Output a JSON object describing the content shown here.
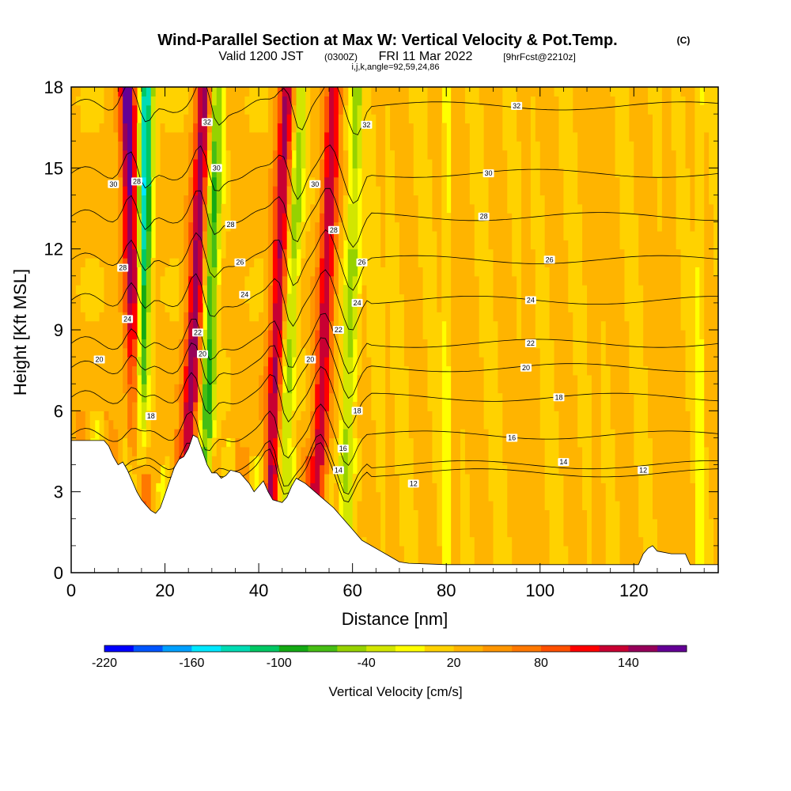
{
  "title": {
    "main": "Wind-Parallel Section at Max W: Vertical Velocity & Pot.Temp.",
    "copyright": "(C)",
    "valid_prefix": "Valid 1200 JST",
    "valid_utc": "(0300Z)",
    "valid_date": "FRI 11 Mar 2022",
    "forecast": "[9hrFcst@2210z]",
    "params": "i,j,k,angle=92,59,24,86"
  },
  "chart_data": {
    "type": "heatmap",
    "xlabel": "Distance [nm]",
    "ylabel": "Height [Kft MSL]",
    "xlim": [
      0,
      138
    ],
    "ylim": [
      0,
      18
    ],
    "x_ticks": [
      0,
      20,
      40,
      60,
      80,
      100,
      120
    ],
    "y_ticks": [
      0,
      3,
      6,
      9,
      12,
      15,
      18
    ],
    "x_tick_labels": [
      "0",
      "20",
      "40",
      "60",
      "80",
      "100",
      "120"
    ],
    "y_tick_labels": [
      "0",
      "3",
      "6",
      "9",
      "12",
      "15",
      "18"
    ],
    "grid": false,
    "colorbar": {
      "title": "Vertical Velocity [cm/s]",
      "min": -220,
      "max": 180,
      "step": 20,
      "tick_labels": [
        "-220",
        "-160",
        "-100",
        "-40",
        "20",
        "80",
        "140"
      ],
      "tick_values": [
        -220,
        -160,
        -100,
        -40,
        20,
        80,
        140
      ],
      "colors": [
        "#0000ff",
        "#0055ff",
        "#00a0ff",
        "#00e8ff",
        "#00dcb4",
        "#00c864",
        "#14aa14",
        "#46be14",
        "#96d200",
        "#d2e600",
        "#ffff00",
        "#ffd200",
        "#ffb400",
        "#ff9600",
        "#ff7800",
        "#ff5000",
        "#ff0000",
        "#c80032",
        "#96005a",
        "#640096"
      ]
    },
    "terrain": [
      [
        0,
        4.9
      ],
      [
        7,
        4.9
      ],
      [
        8,
        4.7
      ],
      [
        9,
        4.3
      ],
      [
        10,
        4.0
      ],
      [
        11,
        4.1
      ],
      [
        12,
        3.8
      ],
      [
        13,
        3.4
      ],
      [
        14,
        3.0
      ],
      [
        15,
        2.7
      ],
      [
        16,
        2.5
      ],
      [
        17,
        2.3
      ],
      [
        18,
        2.2
      ],
      [
        19,
        2.4
      ],
      [
        20,
        2.9
      ],
      [
        21,
        3.4
      ],
      [
        22,
        3.9
      ],
      [
        23,
        4.2
      ],
      [
        24,
        4.3
      ],
      [
        25,
        4.6
      ],
      [
        26,
        5.1
      ],
      [
        27,
        5.0
      ],
      [
        28,
        4.5
      ],
      [
        29,
        4.0
      ],
      [
        30,
        3.7
      ],
      [
        31,
        3.7
      ],
      [
        32,
        3.5
      ],
      [
        33,
        3.6
      ],
      [
        34,
        3.8
      ],
      [
        36,
        3.7
      ],
      [
        37,
        3.5
      ],
      [
        38,
        3.3
      ],
      [
        39,
        3.0
      ],
      [
        40,
        3.2
      ],
      [
        41,
        3.4
      ],
      [
        42,
        3.0
      ],
      [
        43,
        2.7
      ],
      [
        45,
        2.6
      ],
      [
        46,
        2.8
      ],
      [
        47,
        3.2
      ],
      [
        48,
        3.5
      ],
      [
        50,
        3.3
      ],
      [
        52,
        3.0
      ],
      [
        54,
        2.7
      ],
      [
        56,
        2.4
      ],
      [
        58,
        2.0
      ],
      [
        60,
        1.6
      ],
      [
        62,
        1.2
      ],
      [
        64,
        1.0
      ],
      [
        66,
        0.8
      ],
      [
        68,
        0.6
      ],
      [
        70,
        0.4
      ],
      [
        72,
        0.35
      ],
      [
        80,
        0.3
      ],
      [
        90,
        0.3
      ],
      [
        100,
        0.3
      ],
      [
        110,
        0.3
      ],
      [
        121,
        0.3
      ],
      [
        122,
        0.7
      ],
      [
        123,
        0.9
      ],
      [
        124,
        1.0
      ],
      [
        125,
        0.8
      ],
      [
        128,
        0.7
      ],
      [
        131,
        0.7
      ],
      [
        132,
        0.3
      ],
      [
        137,
        0.3
      ]
    ],
    "updraft_bands": [
      {
        "x_top": 12,
        "x_bottom": 15,
        "peak": 150
      },
      {
        "x_top": 28.5,
        "x_bottom": 24,
        "peak": 130
      },
      {
        "x_top": 46,
        "x_bottom": 42,
        "peak": 120
      },
      {
        "x_top": 56,
        "x_bottom": 52,
        "peak": 110
      }
    ],
    "downdraft_bands": [
      {
        "x_top": 16,
        "x_bottom": 14,
        "peak": -170
      },
      {
        "x_top": 31,
        "x_bottom": 28,
        "peak": -110
      },
      {
        "x_top": 49,
        "x_bottom": 44,
        "peak": -80
      },
      {
        "x_top": 61,
        "x_bottom": 58,
        "peak": -70
      }
    ],
    "contour_levels": [
      {
        "label": "12",
        "height": 3.7
      },
      {
        "label": "14",
        "height": 4.0
      },
      {
        "label": "16",
        "height": 5.1
      },
      {
        "label": "18",
        "height": 6.5
      },
      {
        "label": "20",
        "height": 7.6
      },
      {
        "label": "22",
        "height": 8.5
      },
      {
        "label": "24",
        "height": 10.1
      },
      {
        "label": "26",
        "height": 11.6
      },
      {
        "label": "28",
        "height": 13.2
      },
      {
        "label": "30",
        "height": 14.8
      },
      {
        "label": "32",
        "height": 17.3
      }
    ],
    "contour_labels": [
      {
        "text": "32",
        "x": 95,
        "y": 17.3
      },
      {
        "text": "32",
        "x": 63,
        "y": 16.6
      },
      {
        "text": "32",
        "x": 29,
        "y": 16.7
      },
      {
        "text": "30",
        "x": 89,
        "y": 14.8
      },
      {
        "text": "30",
        "x": 31,
        "y": 15.0
      },
      {
        "text": "30",
        "x": 52,
        "y": 14.4
      },
      {
        "text": "30",
        "x": 9,
        "y": 14.4
      },
      {
        "text": "28",
        "x": 88,
        "y": 13.2
      },
      {
        "text": "28",
        "x": 14,
        "y": 14.5
      },
      {
        "text": "28",
        "x": 34,
        "y": 12.9
      },
      {
        "text": "28",
        "x": 56,
        "y": 12.7
      },
      {
        "text": "28",
        "x": 11,
        "y": 11.3
      },
      {
        "text": "26",
        "x": 102,
        "y": 11.6
      },
      {
        "text": "26",
        "x": 36,
        "y": 11.5
      },
      {
        "text": "26",
        "x": 62,
        "y": 11.5
      },
      {
        "text": "24",
        "x": 98,
        "y": 10.1
      },
      {
        "text": "24",
        "x": 37,
        "y": 10.3
      },
      {
        "text": "24",
        "x": 61,
        "y": 10.0
      },
      {
        "text": "24",
        "x": 12,
        "y": 9.4
      },
      {
        "text": "22",
        "x": 98,
        "y": 8.5
      },
      {
        "text": "22",
        "x": 27,
        "y": 8.9
      },
      {
        "text": "22",
        "x": 57,
        "y": 9.0
      },
      {
        "text": "20",
        "x": 97,
        "y": 7.6
      },
      {
        "text": "20",
        "x": 6,
        "y": 7.9
      },
      {
        "text": "20",
        "x": 28,
        "y": 8.1
      },
      {
        "text": "20",
        "x": 51,
        "y": 7.9
      },
      {
        "text": "18",
        "x": 104,
        "y": 6.5
      },
      {
        "text": "18",
        "x": 17,
        "y": 5.8
      },
      {
        "text": "18",
        "x": 61,
        "y": 6.0
      },
      {
        "text": "16",
        "x": 94,
        "y": 5.0
      },
      {
        "text": "16",
        "x": 58,
        "y": 4.6
      },
      {
        "text": "14",
        "x": 105,
        "y": 4.1
      },
      {
        "text": "14",
        "x": 57,
        "y": 3.8
      },
      {
        "text": "12",
        "x": 122,
        "y": 3.8
      },
      {
        "text": "12",
        "x": 73,
        "y": 3.3
      }
    ]
  }
}
